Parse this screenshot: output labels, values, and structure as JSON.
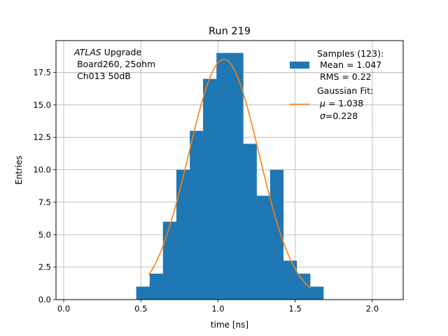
{
  "chart_data": {
    "type": "bar",
    "title": "Run 219",
    "xlabel": "time [ns]",
    "ylabel": "Entries",
    "xlim": [
      -0.05,
      2.2
    ],
    "ylim": [
      0,
      19.95
    ],
    "grid": true,
    "x_ticks": [
      0.0,
      0.5,
      1.0,
      1.5,
      2.0
    ],
    "x_tick_labels": [
      "0.0",
      "0.5",
      "1.0",
      "1.5",
      "2.0"
    ],
    "y_ticks": [
      0.0,
      2.5,
      5.0,
      7.5,
      10.0,
      12.5,
      15.0,
      17.5
    ],
    "y_tick_labels": [
      "0.0",
      "2.5",
      "5.0",
      "7.5",
      "10.0",
      "12.5",
      "15.0",
      "17.5"
    ],
    "bin_edges": [
      0.47,
      0.557,
      0.643,
      0.73,
      0.817,
      0.903,
      0.99,
      1.077,
      1.163,
      1.25,
      1.337,
      1.423,
      1.51,
      1.597,
      1.683
    ],
    "counts": [
      1,
      2,
      6,
      10,
      13,
      17,
      19,
      19,
      12,
      8,
      10,
      3,
      2,
      1
    ],
    "bar_color": "#1f77b4",
    "fit": {
      "mu": 1.038,
      "sigma": 0.228,
      "amplitude": 18.5,
      "x_range": [
        0.55,
        1.6
      ],
      "color": "#ff7f0e"
    },
    "annotation": {
      "italic": "ATLAS",
      "rest": " Upgrade",
      "line2": " Board260, 25ohm",
      "line3": " Ch013 50dB"
    },
    "legend": {
      "placement": "top-right",
      "samples_line1": "Samples (123):",
      "samples_line2": " Mean = 1.047",
      "samples_line3": " RMS = 0.22",
      "fit_line1": "Gaussian Fit:",
      "fit_mu_symbol": "μ",
      "fit_mu_value": " = 1.038",
      "fit_sigma_symbol": "σ",
      "fit_sigma_value": "=0.228"
    }
  }
}
